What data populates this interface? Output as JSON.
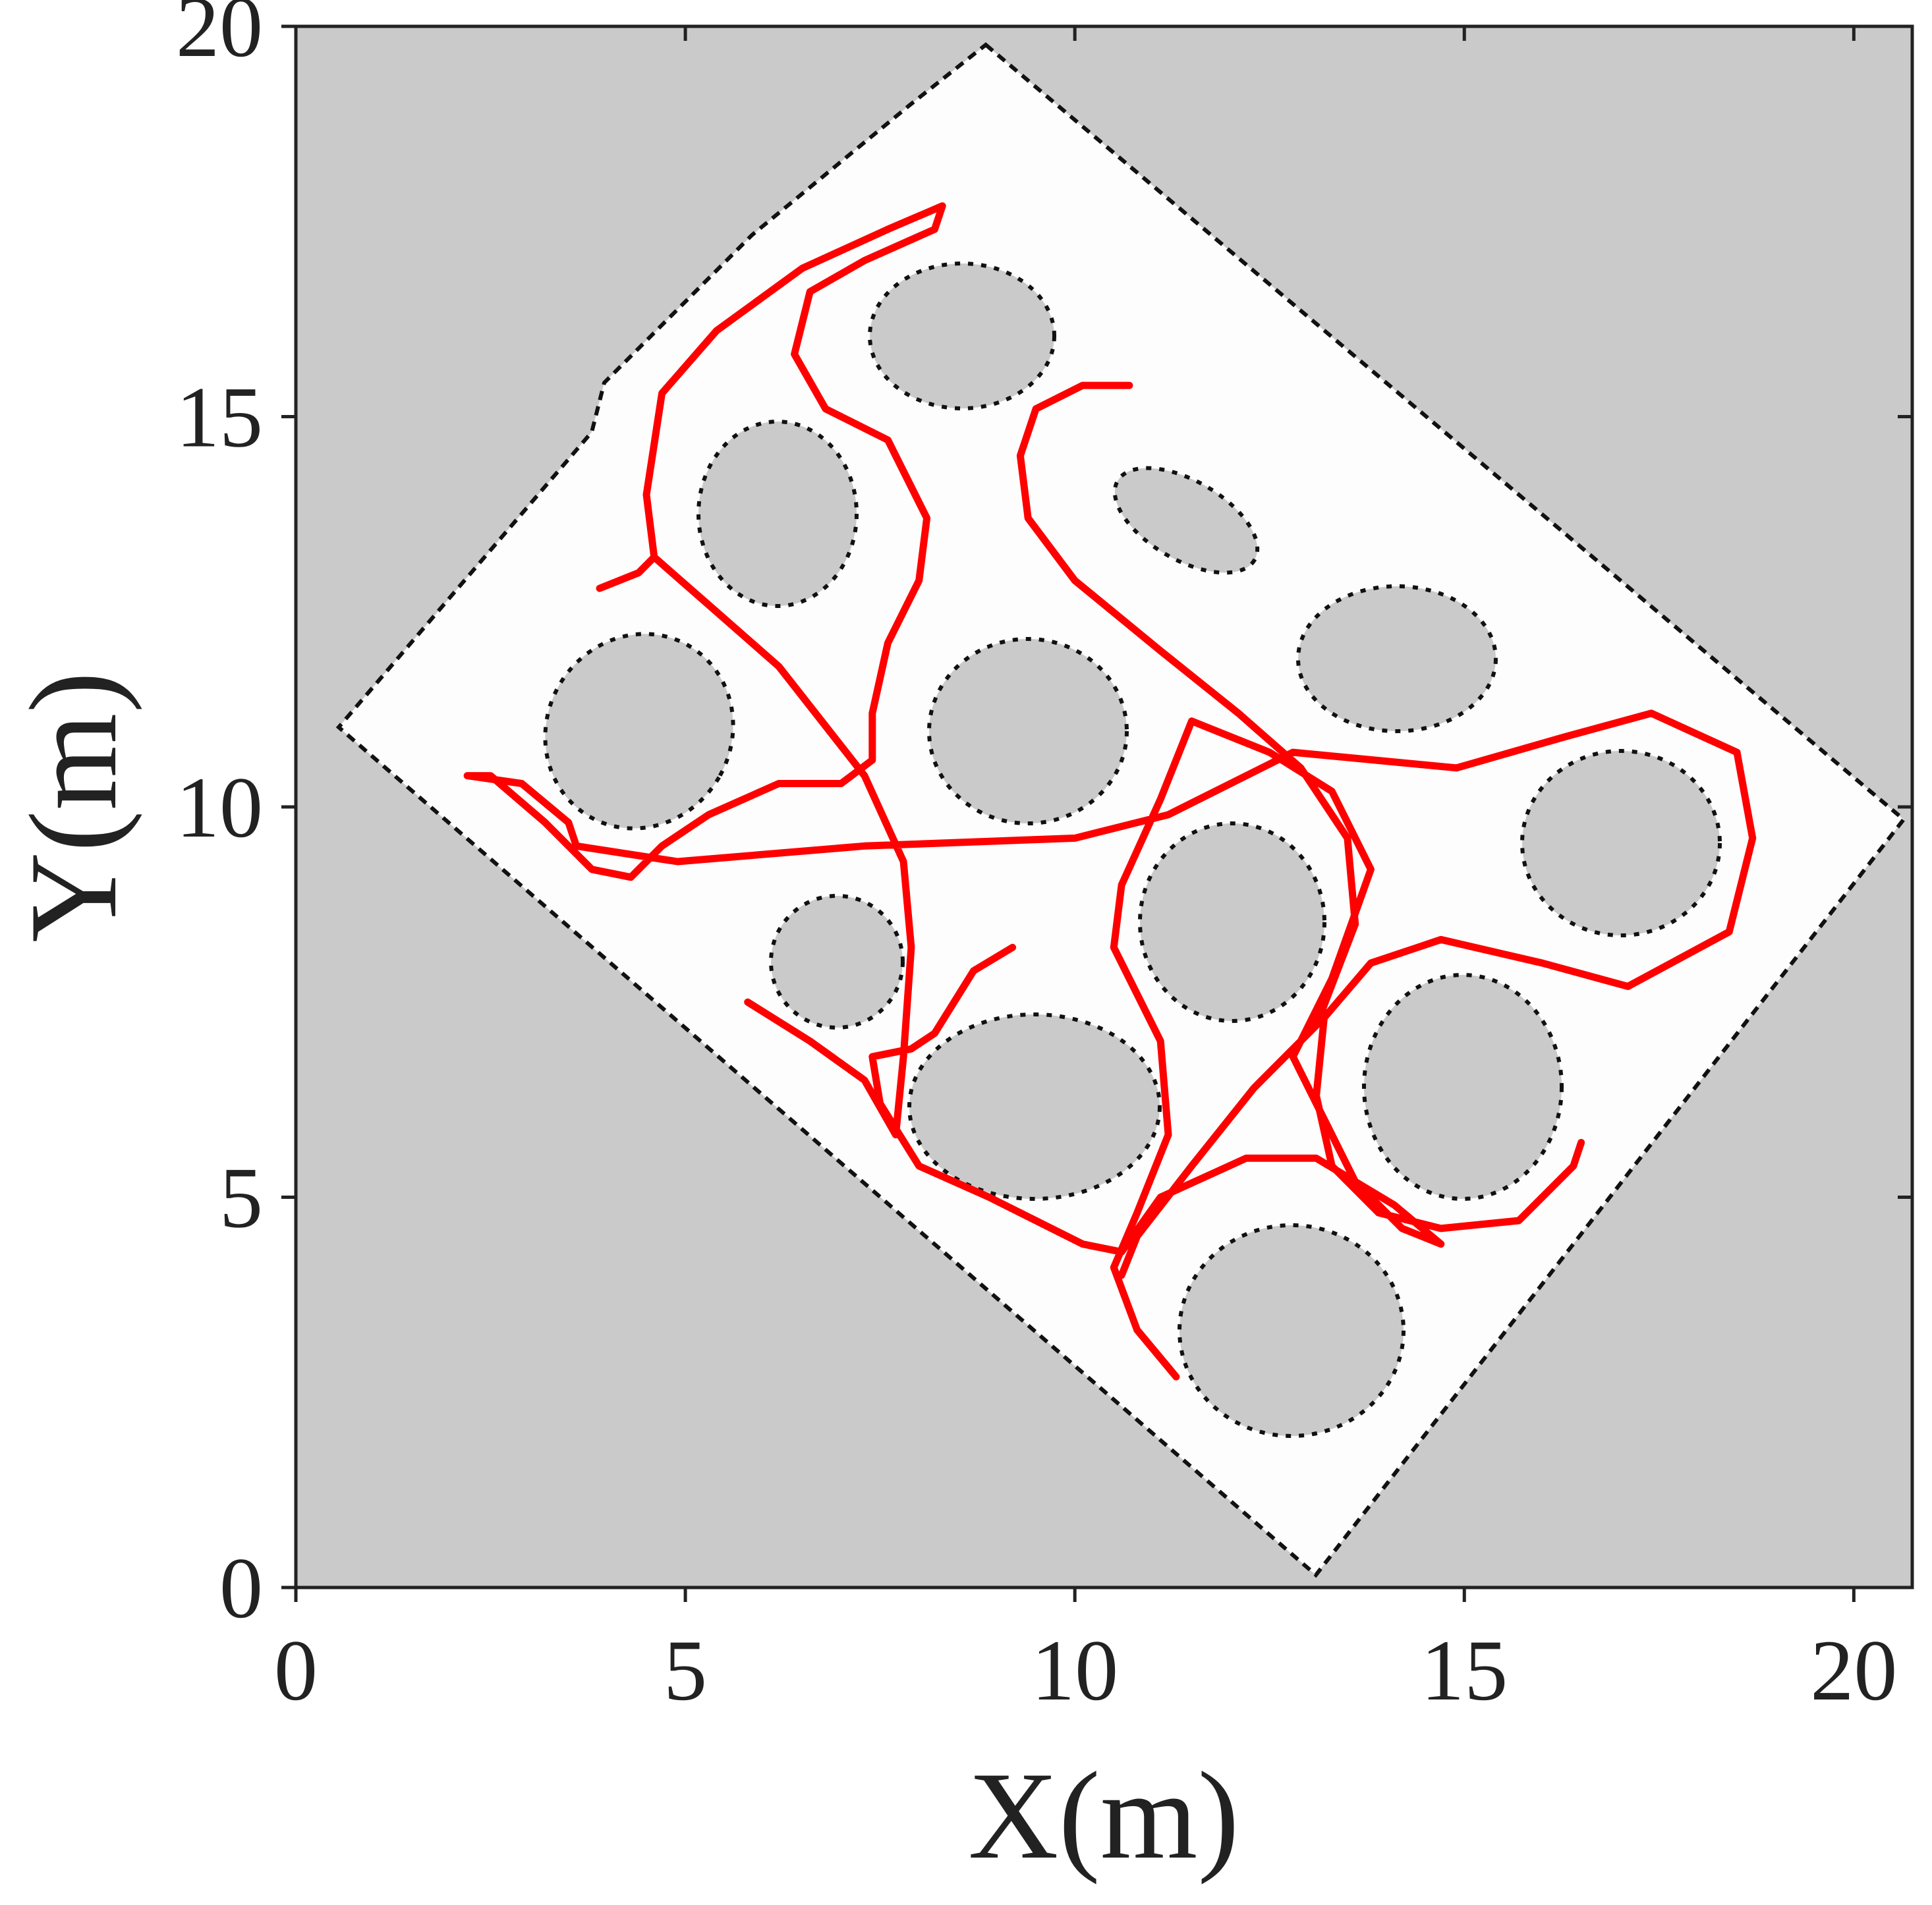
{
  "chart_data": {
    "type": "line",
    "xlabel": "X(m)",
    "ylabel": "Y(m)",
    "color": "#ff0000",
    "xlim": [
      0,
      20.75
    ],
    "ylim": [
      0,
      20
    ],
    "xticks": [
      0,
      5,
      10,
      15,
      20
    ],
    "yticks": [
      0,
      5,
      10,
      15,
      20
    ],
    "x": [
      3.9,
      4.4,
      4.6,
      4.5,
      4.7,
      5.4,
      6.5,
      7.6,
      8.3,
      8.2,
      7.3,
      6.6,
      6.4,
      6.8,
      7.6,
      8.1,
      8.0,
      7.6,
      7.4,
      7.4,
      7.0,
      6.2,
      5.3,
      4.7,
      4.3,
      3.8,
      3.2,
      2.5,
      2.2,
      2.9,
      3.5,
      3.6,
      4.9,
      7.3,
      10.0,
      11.2,
      12.8,
      14.9,
      16.3,
      17.4,
      18.5,
      18.7,
      18.4,
      17.1,
      16.0,
      14.7,
      13.8,
      13.2,
      13.1,
      13.3,
      13.9,
      14.7,
      15.7,
      16.4,
      16.5,
      null,
      4.6,
      5.4,
      6.2,
      7.3,
      7.8,
      7.9,
      7.8,
      7.7,
      7.3,
      6.6,
      5.8,
      null,
      9.2,
      8.7,
      8.2,
      7.9,
      7.4,
      7.5,
      8.0,
      8.9,
      10.1,
      10.6,
      11.1,
      12.2,
      13.1,
      14.1,
      14.7,
      14.2,
      13.6,
      12.8,
      13.3,
      13.8,
      13.3,
      12.5,
      11.5,
      11.1,
      10.6,
      10.5,
      11.1,
      11.2,
      10.8,
      10.5,
      10.8,
      11.3,
      null,
      10.7,
      10.1,
      9.5,
      9.3,
      9.4,
      10.0,
      11.1,
      12.1,
      12.9,
      13.5,
      13.6,
      13.1,
      12.3,
      11.5,
      10.8,
      10.6
    ],
    "values": [
      12.8,
      13.0,
      13.2,
      14.0,
      15.3,
      16.1,
      16.9,
      17.4,
      17.7,
      17.4,
      17.0,
      16.6,
      15.8,
      15.1,
      14.7,
      13.7,
      12.9,
      12.1,
      11.2,
      10.6,
      10.3,
      10.3,
      9.9,
      9.5,
      9.1,
      9.2,
      9.8,
      10.4,
      10.4,
      10.3,
      9.8,
      9.5,
      9.3,
      9.5,
      9.6,
      9.9,
      10.7,
      10.5,
      10.9,
      11.2,
      10.7,
      9.6,
      8.4,
      7.7,
      8.0,
      8.3,
      8.0,
      7.3,
      6.3,
      5.4,
      4.8,
      4.6,
      4.7,
      5.4,
      5.7,
      null,
      13.2,
      12.5,
      11.8,
      10.4,
      9.3,
      8.2,
      6.8,
      5.8,
      6.5,
      7.0,
      7.5,
      null,
      8.2,
      7.9,
      7.1,
      6.9,
      6.8,
      6.2,
      5.4,
      5.0,
      4.4,
      4.3,
      5.0,
      5.5,
      5.5,
      4.9,
      4.4,
      4.6,
      5.2,
      6.8,
      7.8,
      9.2,
      10.2,
      10.7,
      11.1,
      10.1,
      9.0,
      8.2,
      7.0,
      5.8,
      4.8,
      4.1,
      3.3,
      2.7,
      null,
      15.4,
      15.4,
      15.1,
      14.5,
      13.7,
      12.9,
      12.0,
      11.2,
      10.5,
      9.6,
      8.5,
      7.2,
      6.4,
      5.4,
      4.5,
      4.0
    ]
  }
}
